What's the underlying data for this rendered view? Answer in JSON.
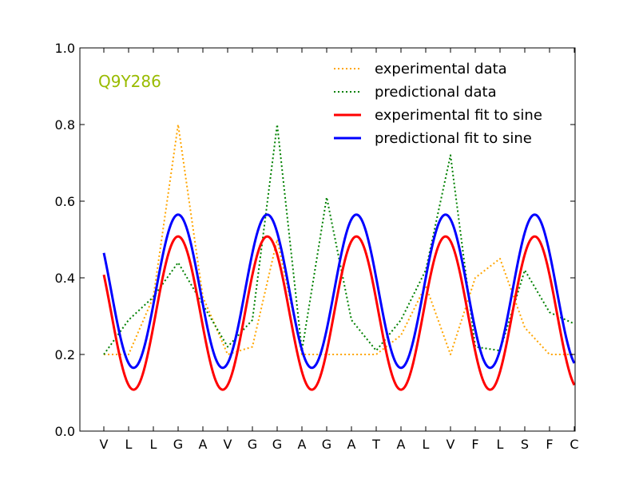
{
  "chart_data": {
    "type": "line",
    "title": "",
    "xlabel": "",
    "ylabel": "",
    "annotation": "Q9Y286",
    "annotation_color": "#99bb00",
    "categories": [
      "V",
      "L",
      "L",
      "G",
      "A",
      "V",
      "G",
      "G",
      "A",
      "G",
      "A",
      "T",
      "A",
      "L",
      "V",
      "F",
      "L",
      "S",
      "F",
      "C"
    ],
    "ylim": [
      0.0,
      1.0
    ],
    "yticks": [
      "0.0",
      "0.2",
      "0.4",
      "0.6",
      "0.8",
      "1.0"
    ],
    "legend_position": "top-right",
    "series": [
      {
        "name": "experimental data",
        "style": "dotted",
        "color": "#ffa500",
        "values": [
          0.2,
          0.2,
          0.35,
          0.8,
          0.35,
          0.2,
          0.22,
          0.5,
          0.2,
          0.2,
          0.2,
          0.2,
          0.25,
          0.38,
          0.2,
          0.4,
          0.45,
          0.27,
          0.2,
          0.2
        ]
      },
      {
        "name": "predictional data",
        "style": "dotted",
        "color": "#008000",
        "values": [
          0.2,
          0.29,
          0.35,
          0.44,
          0.33,
          0.22,
          0.29,
          0.8,
          0.21,
          0.61,
          0.29,
          0.21,
          0.29,
          0.42,
          0.72,
          0.22,
          0.21,
          0.42,
          0.31,
          0.28
        ]
      },
      {
        "name": "experimental fit to sine",
        "style": "solid",
        "color": "#ff0000",
        "fit": {
          "mean": 0.308,
          "amplitude": 0.2,
          "period": 3.6,
          "peak_x": 3.0
        }
      },
      {
        "name": "predictional fit to sine",
        "style": "solid",
        "color": "#0000ff",
        "fit": {
          "mean": 0.365,
          "amplitude": 0.2,
          "period": 3.6,
          "peak_x": 3.0
        }
      }
    ]
  }
}
